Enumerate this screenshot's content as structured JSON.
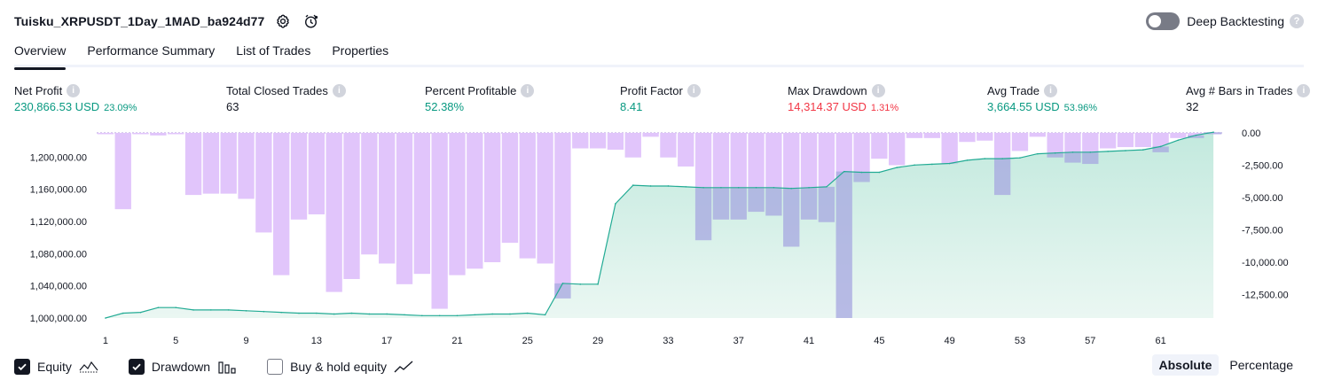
{
  "header": {
    "title": "Tuisku_XRPUSDT_1Day_1MAD_ba924d77"
  },
  "deep_backtesting": {
    "label": "Deep Backtesting",
    "enabled": false
  },
  "tabs": [
    {
      "label": "Overview",
      "active": true
    },
    {
      "label": "Performance Summary",
      "active": false
    },
    {
      "label": "List of Trades",
      "active": false
    },
    {
      "label": "Properties",
      "active": false
    }
  ],
  "metrics": {
    "net_profit": {
      "label": "Net Profit",
      "value": "230,866.53 USD",
      "sub": "23.09%"
    },
    "total_closed_trades": {
      "label": "Total Closed Trades",
      "value": "63"
    },
    "percent_profitable": {
      "label": "Percent Profitable",
      "value": "52.38%"
    },
    "profit_factor": {
      "label": "Profit Factor",
      "value": "8.41"
    },
    "max_drawdown": {
      "label": "Max Drawdown",
      "value": "14,314.37 USD",
      "sub": "1.31%"
    },
    "avg_trade": {
      "label": "Avg Trade",
      "value": "3,664.55 USD",
      "sub": "53.96%"
    },
    "avg_bars": {
      "label": "Avg # Bars in Trades",
      "value": "32"
    }
  },
  "chart_data": {
    "type": "line",
    "x": [
      1,
      2,
      3,
      4,
      5,
      6,
      7,
      8,
      9,
      10,
      11,
      12,
      13,
      14,
      15,
      16,
      17,
      18,
      19,
      20,
      21,
      22,
      23,
      24,
      25,
      26,
      27,
      28,
      29,
      30,
      31,
      32,
      33,
      34,
      35,
      36,
      37,
      38,
      39,
      40,
      41,
      42,
      43,
      44,
      45,
      46,
      47,
      48,
      49,
      50,
      51,
      52,
      53,
      54,
      55,
      56,
      57,
      58,
      59,
      60,
      61,
      62,
      63,
      64
    ],
    "x_ticks": [
      "1",
      "5",
      "9",
      "13",
      "17",
      "21",
      "25",
      "29",
      "33",
      "37",
      "41",
      "45",
      "49",
      "53",
      "57",
      "61"
    ],
    "y_left_ticks": [
      "1,000,000.00",
      "1,040,000.00",
      "1,080,000.00",
      "1,120,000.00",
      "1,160,000.00",
      "1,200,000.00"
    ],
    "y_right_ticks": [
      "0.00",
      "-2,500.00",
      "-5,000.00",
      "-7,500.00",
      "-10,000.00",
      "-12,500.00"
    ],
    "y_left_range": [
      1000000,
      1230000
    ],
    "y_right_range": [
      -14314.37,
      0
    ],
    "series": [
      {
        "name": "Equity",
        "color": "#22ab94",
        "values": [
          1000000,
          1006000,
          1007000,
          1013000,
          1013000,
          1010000,
          1010000,
          1010000,
          1009000,
          1008000,
          1007000,
          1006000,
          1006000,
          1005000,
          1006000,
          1005000,
          1005000,
          1004000,
          1003000,
          1003000,
          1003000,
          1004000,
          1005000,
          1005000,
          1006000,
          1004000,
          1043000,
          1042000,
          1042000,
          1142000,
          1165000,
          1164000,
          1164000,
          1163000,
          1162000,
          1162000,
          1162000,
          1162000,
          1162000,
          1161000,
          1162000,
          1163000,
          1182000,
          1181000,
          1181000,
          1187000,
          1190000,
          1191000,
          1192000,
          1196000,
          1198000,
          1198000,
          1199000,
          1204000,
          1205000,
          1206000,
          1206000,
          1207000,
          1208000,
          1209000,
          1213000,
          1221000,
          1227000,
          1230866.53
        ]
      },
      {
        "name": "Drawdown",
        "color": "#b39ddb",
        "values": [
          -100,
          -5900,
          -50,
          -200,
          -100,
          -4800,
          -4700,
          -4700,
          -5100,
          -7700,
          -11000,
          -6700,
          -6300,
          -12300,
          -11300,
          -9400,
          -10100,
          -11700,
          -10900,
          -13600,
          -11000,
          -10500,
          -10000,
          -8500,
          -9700,
          -10100,
          -12800,
          -1200,
          -1200,
          -1300,
          -1900,
          -300,
          -1900,
          -2600,
          -8300,
          -6700,
          -6700,
          -6100,
          -6400,
          -8800,
          -6700,
          -6900,
          -14314.37,
          -3800,
          -2000,
          -2500,
          -400,
          -400,
          -2400,
          -700,
          -600,
          -4800,
          -1400,
          -300,
          -1900,
          -2300,
          -2400,
          -1200,
          -1100,
          -1100,
          -1500,
          -400,
          -400,
          -100
        ]
      }
    ],
    "legend": [
      {
        "label": "Equity",
        "checked": true
      },
      {
        "label": "Drawdown",
        "checked": true
      },
      {
        "label": "Buy & hold equity",
        "checked": false
      }
    ]
  },
  "mode": {
    "absolute": "Absolute",
    "percentage": "Percentage",
    "selected": "absolute"
  },
  "icons": {
    "settings": "gear-icon",
    "replay": "clock-alert-icon",
    "help": "?",
    "info": "i"
  },
  "colors": {
    "positive": "#089981",
    "negative": "#f23645",
    "drawdown_fill": "#e1c5fb",
    "equity_fill": "#c8ebe1"
  }
}
